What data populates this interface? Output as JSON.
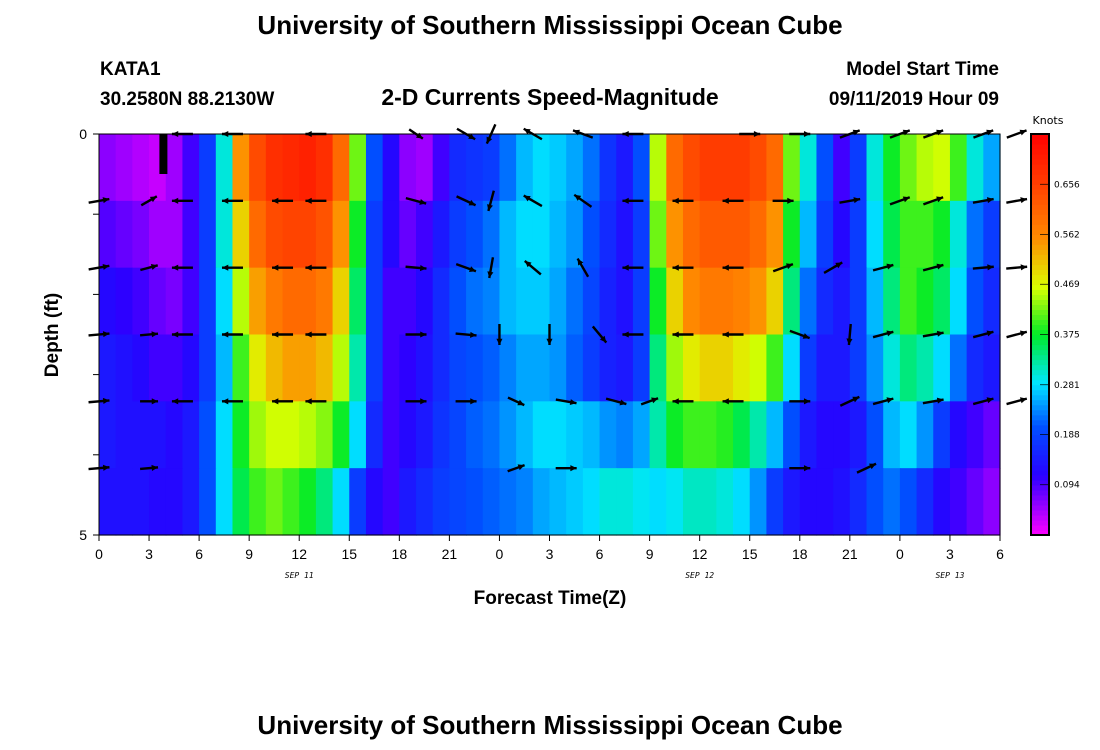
{
  "title": "University of Southern Mississippi Ocean Cube",
  "footer_title": "University of Southern Mississippi Ocean Cube",
  "station": {
    "name": "KATA1",
    "coords": "30.2580N 88.2130W"
  },
  "subtitle": "2-D Currents Speed-Magnitude",
  "model_start": {
    "label": "Model Start Time",
    "value": "09/11/2019 Hour 09"
  },
  "chart_data": {
    "type": "heatmap",
    "title": "2-D Currents Speed-Magnitude",
    "xlabel": "Forecast Time(Z)",
    "ylabel": "Depth (ft)",
    "x_hours": [
      0,
      3,
      6,
      9,
      12,
      15,
      18,
      21,
      24,
      27,
      30,
      33,
      36,
      39,
      42,
      45,
      48,
      51,
      54
    ],
    "x_tick_labels": [
      "0",
      "3",
      "6",
      "9",
      "12",
      "15",
      "18",
      "21",
      "0",
      "3",
      "6",
      "9",
      "12",
      "15",
      "18",
      "21",
      "0",
      "3",
      "6"
    ],
    "day_labels": [
      {
        "hour": 12,
        "label": "SEP 11"
      },
      {
        "hour": 36,
        "label": "SEP 12"
      },
      {
        "hour": 51,
        "label": "SEP 13"
      }
    ],
    "y_ticks": [
      {
        "depth": 0,
        "label": "0"
      },
      {
        "depth": 1,
        "label": ""
      },
      {
        "depth": 2,
        "label": ""
      },
      {
        "depth": 3,
        "label": ""
      },
      {
        "depth": 4,
        "label": ""
      },
      {
        "depth": 5,
        "label": "5"
      }
    ],
    "ylim": [
      0,
      5
    ],
    "xlim": [
      0,
      54
    ],
    "hours": [
      0,
      1,
      2,
      3,
      4,
      5,
      6,
      7,
      8,
      9,
      10,
      11,
      12,
      13,
      14,
      15,
      16,
      17,
      18,
      19,
      20,
      21,
      22,
      23,
      24,
      25,
      26,
      27,
      28,
      29,
      30,
      31,
      32,
      33,
      34,
      35,
      36,
      37,
      38,
      39,
      40,
      41,
      42,
      43,
      44,
      45,
      46,
      47,
      48,
      49,
      50,
      51,
      52,
      53
    ],
    "speed_knots": [
      [
        0.06,
        0.05,
        0.04,
        0.03,
        0.05,
        0.1,
        0.18,
        0.3,
        0.55,
        0.64,
        0.68,
        0.69,
        0.7,
        0.68,
        0.6,
        0.42,
        0.2,
        0.12,
        0.06,
        0.05,
        0.1,
        0.16,
        0.17,
        0.18,
        0.22,
        0.26,
        0.28,
        0.27,
        0.25,
        0.22,
        0.17,
        0.14,
        0.2,
        0.45,
        0.6,
        0.64,
        0.66,
        0.66,
        0.66,
        0.64,
        0.6,
        0.42,
        0.3,
        0.2,
        0.1,
        0.18,
        0.3,
        0.38,
        0.42,
        0.45,
        0.46,
        0.4,
        0.3,
        0.25
      ],
      [
        0.09,
        0.08,
        0.07,
        0.05,
        0.05,
        0.1,
        0.18,
        0.3,
        0.5,
        0.6,
        0.64,
        0.65,
        0.65,
        0.63,
        0.55,
        0.38,
        0.18,
        0.12,
        0.08,
        0.1,
        0.14,
        0.18,
        0.2,
        0.22,
        0.26,
        0.28,
        0.28,
        0.26,
        0.24,
        0.2,
        0.16,
        0.13,
        0.18,
        0.42,
        0.55,
        0.6,
        0.62,
        0.62,
        0.62,
        0.6,
        0.55,
        0.38,
        0.26,
        0.18,
        0.12,
        0.18,
        0.28,
        0.36,
        0.4,
        0.4,
        0.38,
        0.3,
        0.22,
        0.18
      ],
      [
        0.12,
        0.11,
        0.1,
        0.08,
        0.07,
        0.1,
        0.18,
        0.28,
        0.45,
        0.54,
        0.58,
        0.6,
        0.6,
        0.58,
        0.5,
        0.35,
        0.18,
        0.1,
        0.1,
        0.12,
        0.16,
        0.2,
        0.22,
        0.23,
        0.26,
        0.27,
        0.27,
        0.25,
        0.22,
        0.19,
        0.15,
        0.13,
        0.18,
        0.38,
        0.5,
        0.56,
        0.58,
        0.58,
        0.57,
        0.55,
        0.5,
        0.34,
        0.22,
        0.16,
        0.14,
        0.18,
        0.26,
        0.34,
        0.4,
        0.38,
        0.35,
        0.28,
        0.2,
        0.16
      ],
      [
        0.14,
        0.13,
        0.12,
        0.1,
        0.1,
        0.12,
        0.18,
        0.26,
        0.4,
        0.48,
        0.52,
        0.54,
        0.54,
        0.52,
        0.45,
        0.32,
        0.18,
        0.1,
        0.11,
        0.13,
        0.16,
        0.19,
        0.2,
        0.21,
        0.23,
        0.25,
        0.25,
        0.24,
        0.21,
        0.18,
        0.15,
        0.14,
        0.18,
        0.34,
        0.44,
        0.48,
        0.5,
        0.5,
        0.48,
        0.46,
        0.4,
        0.28,
        0.18,
        0.14,
        0.14,
        0.18,
        0.24,
        0.3,
        0.34,
        0.32,
        0.28,
        0.22,
        0.16,
        0.14
      ],
      [
        0.14,
        0.13,
        0.13,
        0.13,
        0.12,
        0.14,
        0.2,
        0.28,
        0.38,
        0.44,
        0.46,
        0.46,
        0.45,
        0.43,
        0.38,
        0.28,
        0.16,
        0.1,
        0.12,
        0.14,
        0.17,
        0.19,
        0.21,
        0.22,
        0.24,
        0.26,
        0.28,
        0.28,
        0.27,
        0.26,
        0.24,
        0.23,
        0.25,
        0.32,
        0.38,
        0.4,
        0.4,
        0.39,
        0.36,
        0.32,
        0.26,
        0.2,
        0.14,
        0.12,
        0.12,
        0.14,
        0.2,
        0.26,
        0.28,
        0.24,
        0.18,
        0.12,
        0.1,
        0.08
      ],
      [
        0.13,
        0.13,
        0.13,
        0.12,
        0.12,
        0.14,
        0.2,
        0.28,
        0.36,
        0.4,
        0.42,
        0.4,
        0.38,
        0.34,
        0.28,
        0.18,
        0.12,
        0.1,
        0.14,
        0.16,
        0.18,
        0.19,
        0.2,
        0.21,
        0.22,
        0.23,
        0.25,
        0.26,
        0.27,
        0.28,
        0.3,
        0.3,
        0.29,
        0.28,
        0.29,
        0.31,
        0.31,
        0.3,
        0.28,
        0.24,
        0.18,
        0.14,
        0.12,
        0.12,
        0.13,
        0.16,
        0.2,
        0.22,
        0.2,
        0.16,
        0.12,
        0.1,
        0.08,
        0.06
      ]
    ],
    "colorbar": {
      "label": "Knots",
      "min": 0.0,
      "max": 0.75,
      "ticks": [
        0.094,
        0.188,
        0.281,
        0.375,
        0.469,
        0.562,
        0.656
      ],
      "tick_labels": [
        "0.094",
        "0.188",
        "0.281",
        "0.375",
        "0.469",
        "0.562",
        "0.656"
      ]
    },
    "vectors": [
      [
        {
          "hour": 3.5,
          "angle": 90,
          "len": 1.0,
          "marker": true
        },
        {
          "hour": 5,
          "angle": 180,
          "len": 0.7
        },
        {
          "hour": 8,
          "angle": 180,
          "len": 0.7
        },
        {
          "hour": 13,
          "angle": 180,
          "len": 0.7
        },
        {
          "hour": 19,
          "angle": 34,
          "len": 0.55
        },
        {
          "hour": 22,
          "angle": 30,
          "len": 0.7
        },
        {
          "hour": 23.5,
          "angle": 114,
          "len": 0.7
        },
        {
          "hour": 26,
          "angle": 210,
          "len": 0.7
        },
        {
          "hour": 29,
          "angle": 200,
          "len": 0.7
        },
        {
          "hour": 32,
          "angle": 180,
          "len": 0.7
        },
        {
          "hour": 39,
          "angle": 0,
          "len": 0.7
        },
        {
          "hour": 42,
          "angle": 0,
          "len": 0.7
        },
        {
          "hour": 45,
          "angle": 340,
          "len": 0.7
        },
        {
          "hour": 48,
          "angle": -20,
          "len": 0.7
        },
        {
          "hour": 50,
          "angle": -20,
          "len": 0.7
        },
        {
          "hour": 53,
          "angle": -20,
          "len": 0.7
        },
        {
          "hour": 55,
          "angle": -20,
          "len": 0.7
        }
      ],
      [
        {
          "hour": 0,
          "angle": -10,
          "len": 0.7
        },
        {
          "hour": 3,
          "angle": -30,
          "len": 0.6
        },
        {
          "hour": 5,
          "angle": 180,
          "len": 0.7
        },
        {
          "hour": 8,
          "angle": 180,
          "len": 0.7
        },
        {
          "hour": 11,
          "angle": 180,
          "len": 0.7
        },
        {
          "hour": 13,
          "angle": 180,
          "len": 0.7
        },
        {
          "hour": 19,
          "angle": 15,
          "len": 0.7
        },
        {
          "hour": 22,
          "angle": 25,
          "len": 0.7
        },
        {
          "hour": 23.5,
          "angle": 105,
          "len": 0.7
        },
        {
          "hour": 26,
          "angle": 210,
          "len": 0.7
        },
        {
          "hour": 29,
          "angle": 215,
          "len": 0.7
        },
        {
          "hour": 32,
          "angle": 180,
          "len": 0.7
        },
        {
          "hour": 35,
          "angle": 180,
          "len": 0.7
        },
        {
          "hour": 38,
          "angle": 180,
          "len": 0.7
        },
        {
          "hour": 41,
          "angle": 0,
          "len": 0.7
        },
        {
          "hour": 45,
          "angle": -10,
          "len": 0.7
        },
        {
          "hour": 48,
          "angle": -20,
          "len": 0.7
        },
        {
          "hour": 50,
          "angle": -20,
          "len": 0.7
        },
        {
          "hour": 53,
          "angle": -10,
          "len": 0.7
        },
        {
          "hour": 55,
          "angle": -10,
          "len": 0.7
        }
      ],
      [
        {
          "hour": 0,
          "angle": -10,
          "len": 0.7
        },
        {
          "hour": 3,
          "angle": -15,
          "len": 0.6
        },
        {
          "hour": 5,
          "angle": 180,
          "len": 0.7
        },
        {
          "hour": 8,
          "angle": 180,
          "len": 0.7
        },
        {
          "hour": 11,
          "angle": 180,
          "len": 0.7
        },
        {
          "hour": 13,
          "angle": 180,
          "len": 0.7
        },
        {
          "hour": 19,
          "angle": 5,
          "len": 0.7
        },
        {
          "hour": 22,
          "angle": 20,
          "len": 0.7
        },
        {
          "hour": 23.5,
          "angle": 100,
          "len": 0.7
        },
        {
          "hour": 26,
          "angle": 220,
          "len": 0.7
        },
        {
          "hour": 29,
          "angle": 240,
          "len": 0.7
        },
        {
          "hour": 32,
          "angle": 180,
          "len": 0.7
        },
        {
          "hour": 35,
          "angle": 180,
          "len": 0.7
        },
        {
          "hour": 38,
          "angle": 180,
          "len": 0.7
        },
        {
          "hour": 41,
          "angle": -20,
          "len": 0.7
        },
        {
          "hour": 44,
          "angle": -30,
          "len": 0.7
        },
        {
          "hour": 47,
          "angle": -15,
          "len": 0.7
        },
        {
          "hour": 50,
          "angle": -15,
          "len": 0.7
        },
        {
          "hour": 53,
          "angle": -5,
          "len": 0.7
        },
        {
          "hour": 55,
          "angle": -5,
          "len": 0.7
        }
      ],
      [
        {
          "hour": 0,
          "angle": -5,
          "len": 0.7
        },
        {
          "hour": 3,
          "angle": -5,
          "len": 0.6
        },
        {
          "hour": 5,
          "angle": 180,
          "len": 0.7
        },
        {
          "hour": 8,
          "angle": 180,
          "len": 0.7
        },
        {
          "hour": 11,
          "angle": 180,
          "len": 0.7
        },
        {
          "hour": 13,
          "angle": 180,
          "len": 0.7
        },
        {
          "hour": 19,
          "angle": 0,
          "len": 0.7
        },
        {
          "hour": 22,
          "angle": 5,
          "len": 0.7
        },
        {
          "hour": 24,
          "angle": 90,
          "len": 0.7
        },
        {
          "hour": 27,
          "angle": 90,
          "len": 0.7
        },
        {
          "hour": 30,
          "angle": 50,
          "len": 0.7
        },
        {
          "hour": 32,
          "angle": 180,
          "len": 0.7
        },
        {
          "hour": 35,
          "angle": 180,
          "len": 0.7
        },
        {
          "hour": 38,
          "angle": 180,
          "len": 0.7
        },
        {
          "hour": 42,
          "angle": 20,
          "len": 0.7
        },
        {
          "hour": 45,
          "angle": 95,
          "len": 0.7
        },
        {
          "hour": 47,
          "angle": -15,
          "len": 0.7
        },
        {
          "hour": 50,
          "angle": -10,
          "len": 0.7
        },
        {
          "hour": 53,
          "angle": -15,
          "len": 0.7
        },
        {
          "hour": 55,
          "angle": -15,
          "len": 0.7
        }
      ],
      [
        {
          "hour": 0,
          "angle": -5,
          "len": 0.7
        },
        {
          "hour": 3,
          "angle": 0,
          "len": 0.6
        },
        {
          "hour": 5,
          "angle": 180,
          "len": 0.7
        },
        {
          "hour": 8,
          "angle": 180,
          "len": 0.7
        },
        {
          "hour": 11,
          "angle": 180,
          "len": 0.7
        },
        {
          "hour": 13,
          "angle": 180,
          "len": 0.7
        },
        {
          "hour": 19,
          "angle": 0,
          "len": 0.7
        },
        {
          "hour": 22,
          "angle": 0,
          "len": 0.7
        },
        {
          "hour": 25,
          "angle": 25,
          "len": 0.6
        },
        {
          "hour": 28,
          "angle": 10,
          "len": 0.7
        },
        {
          "hour": 31,
          "angle": 15,
          "len": 0.7
        },
        {
          "hour": 33,
          "angle": -20,
          "len": 0.6
        },
        {
          "hour": 35,
          "angle": 180,
          "len": 0.7
        },
        {
          "hour": 38,
          "angle": 180,
          "len": 0.7
        },
        {
          "hour": 42,
          "angle": 0,
          "len": 0.7
        },
        {
          "hour": 45,
          "angle": -25,
          "len": 0.7
        },
        {
          "hour": 47,
          "angle": -15,
          "len": 0.7
        },
        {
          "hour": 50,
          "angle": -10,
          "len": 0.7
        },
        {
          "hour": 53,
          "angle": -15,
          "len": 0.7
        },
        {
          "hour": 55,
          "angle": -15,
          "len": 0.7
        }
      ],
      [
        {
          "hour": 0,
          "angle": -5,
          "len": 0.7
        },
        {
          "hour": 3,
          "angle": -5,
          "len": 0.6
        },
        {
          "hour": 25,
          "angle": -20,
          "len": 0.6
        },
        {
          "hour": 28,
          "angle": 0,
          "len": 0.7
        },
        {
          "hour": 42,
          "angle": 0,
          "len": 0.7
        },
        {
          "hour": 46,
          "angle": -25,
          "len": 0.7
        }
      ]
    ]
  }
}
